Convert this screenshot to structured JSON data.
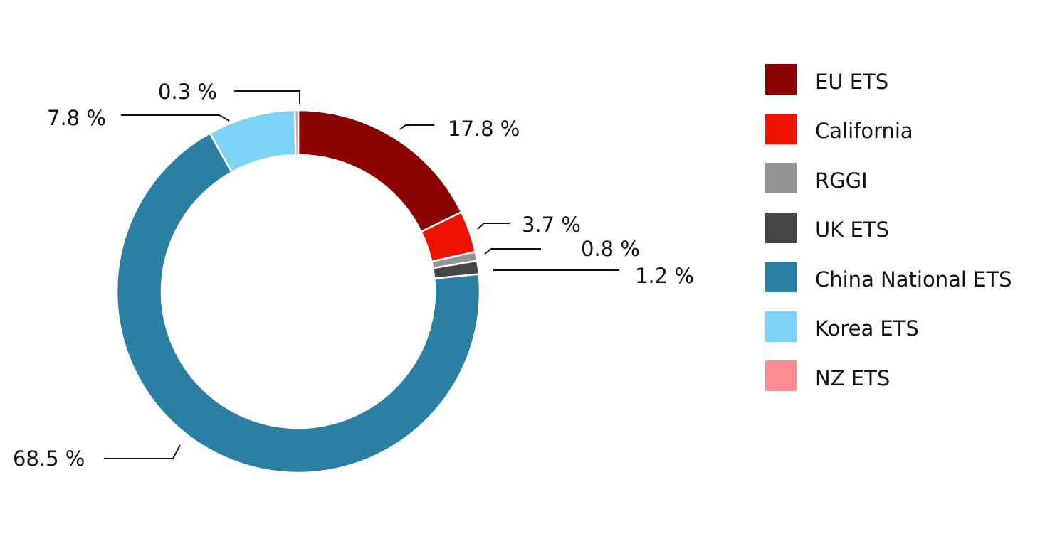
{
  "chart_data": {
    "type": "pie",
    "variant": "donut",
    "title": "",
    "legend_position": "right",
    "series": [
      {
        "name": "EU ETS",
        "value": 17.8,
        "label": "17.8 %",
        "color": "#8B0000"
      },
      {
        "name": "California",
        "value": 3.7,
        "label": "3.7 %",
        "color": "#EE1100"
      },
      {
        "name": "RGGI",
        "value": 0.8,
        "label": "0.8 %",
        "color": "#949494"
      },
      {
        "name": "UK ETS",
        "value": 1.2,
        "label": "1.2 %",
        "color": "#464646"
      },
      {
        "name": "China National ETS",
        "value": 68.5,
        "label": "68.5 %",
        "color": "#2A7FA2"
      },
      {
        "name": "Korea ETS",
        "value": 7.8,
        "label": "7.8 %",
        "color": "#7DD3F7"
      },
      {
        "name": "NZ ETS",
        "value": 0.3,
        "label": "0.3 %",
        "color": "#FF8C91"
      }
    ]
  }
}
